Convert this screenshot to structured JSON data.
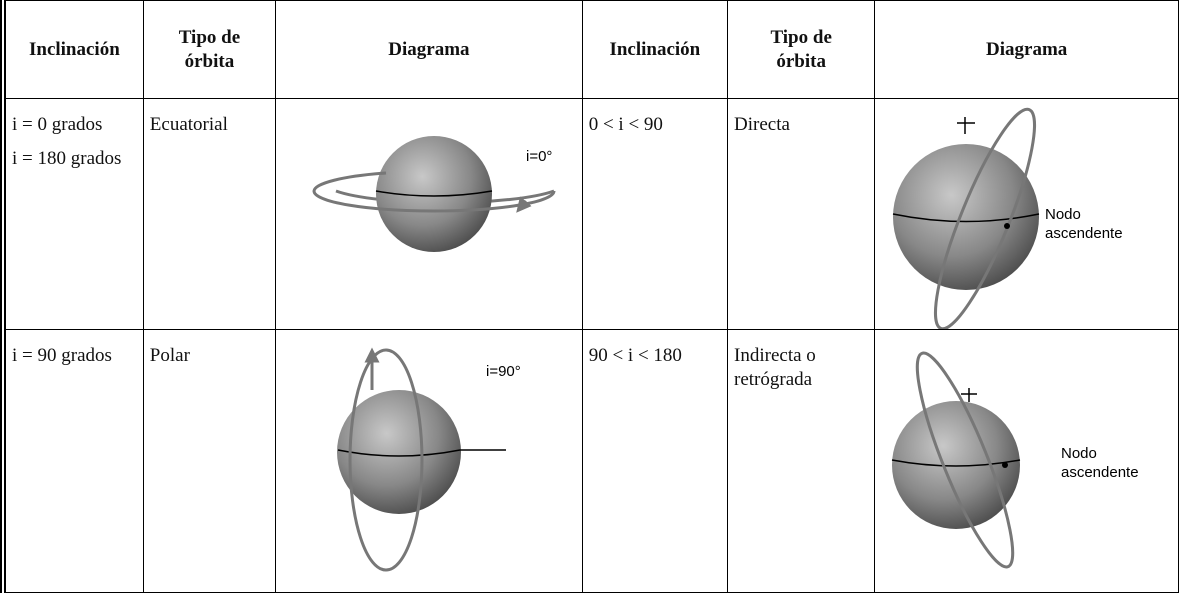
{
  "table": {
    "header": [
      "Inclinación",
      "Tipo de órbita",
      "Diagrama",
      "Inclinación",
      "Tipo de órbita",
      "Diagrama"
    ],
    "rows": [
      [
        [
          "i = 0 grados",
          "i = 180 grados"
        ],
        "Ecuatorial",
        {
          "label": "i=0°"
        },
        "0 < i < 90",
        "Directa",
        {
          "label": [
            "Nodo",
            "ascendente"
          ]
        }
      ],
      [
        [
          "i = 90 grados"
        ],
        "Polar",
        {
          "label": "i=90°"
        },
        "90 < i < 180",
        "Indirecta o retrógrada",
        {
          "label": [
            "Nodo",
            "ascendente"
          ]
        }
      ]
    ]
  }
}
